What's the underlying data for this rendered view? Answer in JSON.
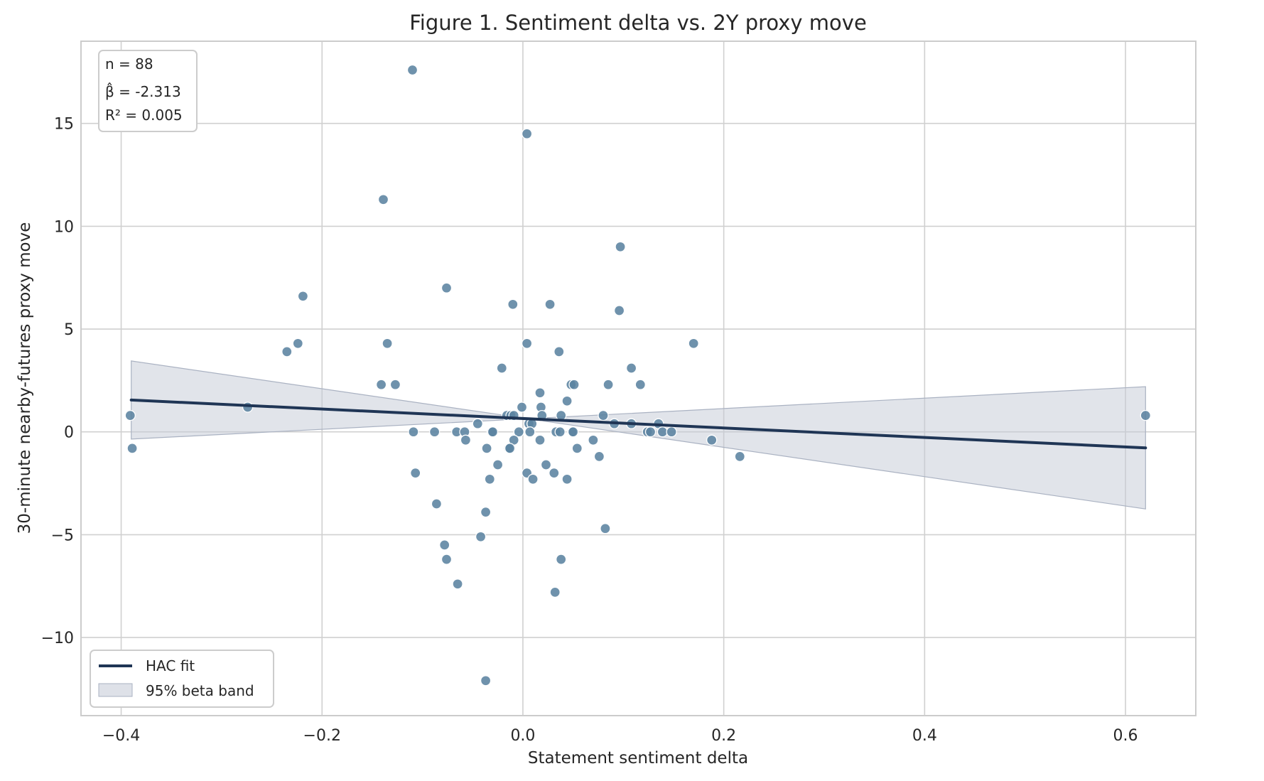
{
  "chart_data": {
    "type": "scatter",
    "title": "Figure 1. Sentiment delta vs. 2Y proxy move",
    "xlabel": "Statement sentiment delta",
    "ylabel": "30-minute nearby-futures proxy move",
    "xlim": [
      -0.44,
      0.67
    ],
    "ylim": [
      -13.8,
      19.0
    ],
    "xticks": [
      -0.4,
      -0.2,
      0.0,
      0.2,
      0.4,
      0.6
    ],
    "xtick_labels": [
      "−0.4",
      "−0.2",
      "0.0",
      "0.2",
      "0.4",
      "0.6"
    ],
    "yticks": [
      -10,
      -5,
      0,
      5,
      10,
      15
    ],
    "ytick_labels": [
      "−10",
      "−5",
      "0",
      "5",
      "10",
      "15"
    ],
    "grid": true,
    "legend_position": "lower-left",
    "stats_box_position": "top-left",
    "stats": {
      "n": "n = 88",
      "beta": "β̂ = -2.313",
      "r2": "R² = 0.005"
    },
    "legend": {
      "fit_label": "HAC fit",
      "band_label": "95% beta band"
    },
    "colors": {
      "points": "#5b83a0",
      "fit_line": "#1f3555",
      "band": "#c3c9d5",
      "grid": "#d0d0d0",
      "axes_frame": "#cccccc"
    },
    "fit_line": {
      "x": [
        -0.39,
        0.62
      ],
      "y": [
        1.55,
        -0.78
      ]
    },
    "band": {
      "x": [
        -0.39,
        0.62
      ],
      "upper": [
        3.45,
        2.2
      ],
      "lower": [
        -0.35,
        -3.75
      ]
    },
    "points": [
      {
        "x": -0.11,
        "y": 17.6
      },
      {
        "x": 0.004,
        "y": 14.5
      },
      {
        "x": -0.139,
        "y": 11.3
      },
      {
        "x": 0.097,
        "y": 9.0
      },
      {
        "x": -0.076,
        "y": 7.0
      },
      {
        "x": -0.219,
        "y": 6.6
      },
      {
        "x": -0.01,
        "y": 6.2
      },
      {
        "x": 0.027,
        "y": 6.2
      },
      {
        "x": 0.096,
        "y": 5.9
      },
      {
        "x": -0.135,
        "y": 4.3
      },
      {
        "x": -0.224,
        "y": 4.3
      },
      {
        "x": 0.004,
        "y": 4.3
      },
      {
        "x": 0.17,
        "y": 4.3
      },
      {
        "x": -0.235,
        "y": 3.9
      },
      {
        "x": 0.036,
        "y": 3.9
      },
      {
        "x": -0.021,
        "y": 3.1
      },
      {
        "x": 0.108,
        "y": 3.1
      },
      {
        "x": -0.141,
        "y": 2.3
      },
      {
        "x": -0.127,
        "y": 2.3
      },
      {
        "x": 0.048,
        "y": 2.3
      },
      {
        "x": 0.051,
        "y": 2.3
      },
      {
        "x": 0.085,
        "y": 2.3
      },
      {
        "x": 0.117,
        "y": 2.3
      },
      {
        "x": 0.017,
        "y": 1.9
      },
      {
        "x": 0.044,
        "y": 1.5
      },
      {
        "x": -0.274,
        "y": 1.2
      },
      {
        "x": -0.001,
        "y": 1.2
      },
      {
        "x": 0.018,
        "y": 1.2
      },
      {
        "x": -0.391,
        "y": 0.8
      },
      {
        "x": -0.016,
        "y": 0.8
      },
      {
        "x": -0.012,
        "y": 0.8
      },
      {
        "x": -0.009,
        "y": 0.8
      },
      {
        "x": 0.019,
        "y": 0.8
      },
      {
        "x": 0.038,
        "y": 0.8
      },
      {
        "x": 0.08,
        "y": 0.8
      },
      {
        "x": 0.62,
        "y": 0.8
      },
      {
        "x": -0.045,
        "y": 0.4
      },
      {
        "x": 0.006,
        "y": 0.4
      },
      {
        "x": 0.009,
        "y": 0.4
      },
      {
        "x": 0.091,
        "y": 0.4
      },
      {
        "x": 0.108,
        "y": 0.4
      },
      {
        "x": 0.135,
        "y": 0.4
      },
      {
        "x": -0.109,
        "y": 0.0
      },
      {
        "x": -0.088,
        "y": 0.0
      },
      {
        "x": -0.066,
        "y": 0.0
      },
      {
        "x": -0.058,
        "y": 0.0
      },
      {
        "x": -0.031,
        "y": 0.0
      },
      {
        "x": -0.03,
        "y": 0.0
      },
      {
        "x": -0.004,
        "y": 0.0
      },
      {
        "x": 0.007,
        "y": 0.0
      },
      {
        "x": 0.033,
        "y": 0.0
      },
      {
        "x": 0.037,
        "y": 0.0
      },
      {
        "x": 0.049,
        "y": 0.0
      },
      {
        "x": 0.05,
        "y": 0.0
      },
      {
        "x": 0.124,
        "y": 0.0
      },
      {
        "x": 0.127,
        "y": 0.0
      },
      {
        "x": 0.139,
        "y": 0.0
      },
      {
        "x": 0.148,
        "y": 0.0
      },
      {
        "x": -0.057,
        "y": -0.4
      },
      {
        "x": -0.009,
        "y": -0.4
      },
      {
        "x": 0.017,
        "y": -0.4
      },
      {
        "x": 0.07,
        "y": -0.4
      },
      {
        "x": 0.188,
        "y": -0.4
      },
      {
        "x": -0.389,
        "y": -0.8
      },
      {
        "x": -0.036,
        "y": -0.8
      },
      {
        "x": -0.014,
        "y": -0.8
      },
      {
        "x": -0.013,
        "y": -0.8
      },
      {
        "x": 0.054,
        "y": -0.8
      },
      {
        "x": 0.076,
        "y": -1.2
      },
      {
        "x": 0.216,
        "y": -1.2
      },
      {
        "x": -0.025,
        "y": -1.6
      },
      {
        "x": 0.023,
        "y": -1.6
      },
      {
        "x": -0.107,
        "y": -2.0
      },
      {
        "x": 0.004,
        "y": -2.0
      },
      {
        "x": 0.031,
        "y": -2.0
      },
      {
        "x": -0.033,
        "y": -2.3
      },
      {
        "x": 0.01,
        "y": -2.3
      },
      {
        "x": 0.044,
        "y": -2.3
      },
      {
        "x": -0.086,
        "y": -3.5
      },
      {
        "x": -0.037,
        "y": -3.9
      },
      {
        "x": 0.082,
        "y": -4.7
      },
      {
        "x": -0.042,
        "y": -5.1
      },
      {
        "x": -0.078,
        "y": -5.5
      },
      {
        "x": -0.076,
        "y": -6.2
      },
      {
        "x": 0.038,
        "y": -6.2
      },
      {
        "x": -0.065,
        "y": -7.4
      },
      {
        "x": 0.032,
        "y": -7.8
      },
      {
        "x": -0.037,
        "y": -12.1
      }
    ]
  }
}
